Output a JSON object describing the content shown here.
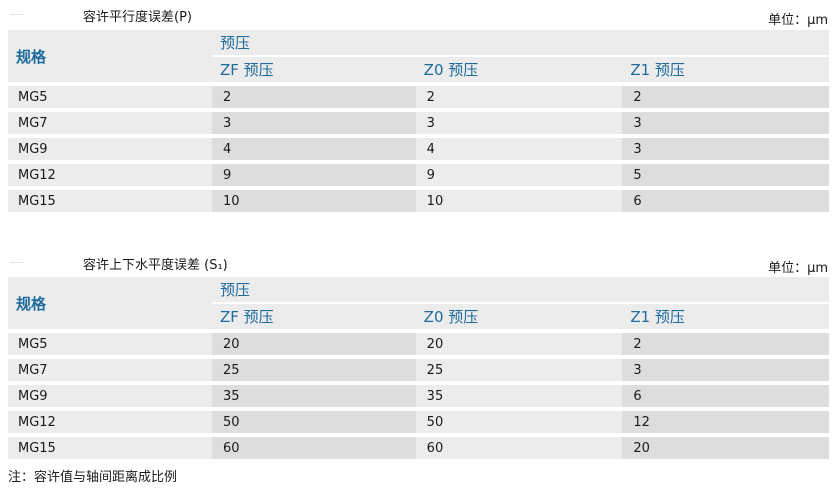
{
  "unit_label": "单位：μm",
  "header": {
    "spec": "规格",
    "preload": "预压",
    "cols": [
      "ZF 预压",
      "Z0 预压",
      "Z1 预压"
    ]
  },
  "tables": [
    {
      "title": "容许平行度误差(P)",
      "rows": [
        [
          "MG5",
          "2",
          "2",
          "2"
        ],
        [
          "MG7",
          "3",
          "3",
          "3"
        ],
        [
          "MG9",
          "4",
          "4",
          "3"
        ],
        [
          "MG12",
          "9",
          "9",
          "5"
        ],
        [
          "MG15",
          "10",
          "10",
          "6"
        ]
      ]
    },
    {
      "title": "容许上下水平度误差 (S₁)",
      "rows": [
        [
          "MG5",
          "20",
          "20",
          "2"
        ],
        [
          "MG7",
          "25",
          "25",
          "3"
        ],
        [
          "MG9",
          "35",
          "35",
          "6"
        ],
        [
          "MG12",
          "50",
          "50",
          "12"
        ],
        [
          "MG15",
          "60",
          "60",
          "20"
        ]
      ]
    }
  ],
  "note": "注：容许值与轴间距离成比例"
}
